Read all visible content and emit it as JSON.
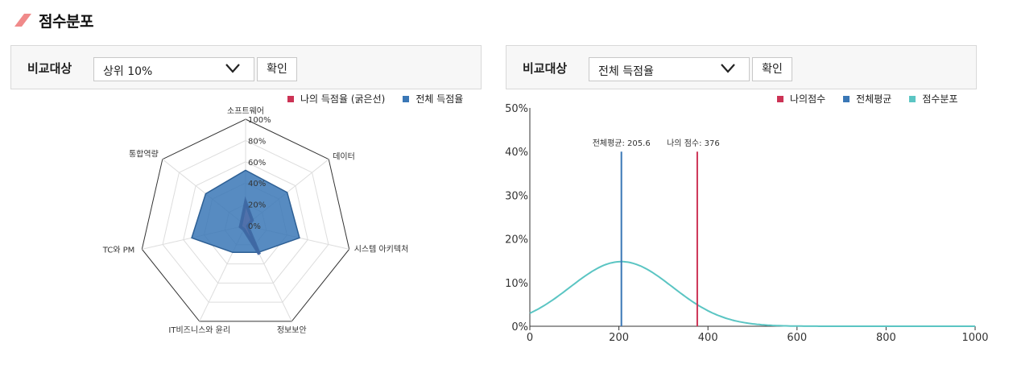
{
  "section": {
    "title": "점수분포"
  },
  "left_panel": {
    "compare_label": "비교대상",
    "select_value": "상위 10%",
    "confirm_label": "확인"
  },
  "right_panel": {
    "compare_label": "비교대상",
    "select_value": "전체 득점율",
    "confirm_label": "확인"
  },
  "colors": {
    "accent_red": "#cc3355",
    "blue": "#3a77b6",
    "teal": "#5bc5c3",
    "title_mark": "#f08a8a"
  },
  "chart_data": [
    {
      "type": "radar",
      "axes": [
        "소프트웨어",
        "데이터",
        "시스템 아키텍처",
        "정보보안",
        "IT비즈니스와 윤리",
        "TC와 PM",
        "통합역량"
      ],
      "radial_ticks": [
        "100%",
        "80%",
        "60%",
        "40%",
        "20%",
        "0%"
      ],
      "rmax": 100,
      "series": [
        {
          "name": "나의 득점율 (굵은선)",
          "color": "#cc3355",
          "values": [
            22,
            8,
            2,
            30,
            4,
            5,
            5
          ]
        },
        {
          "name": "전체 득점율",
          "color": "#3a77b6",
          "values": [
            52,
            50,
            52,
            28,
            28,
            52,
            48
          ]
        }
      ],
      "legend_position": "top-right"
    },
    {
      "type": "line",
      "x_range": [
        0,
        1000
      ],
      "y_range": [
        0,
        50
      ],
      "x_ticks": [
        "0",
        "200",
        "400",
        "600",
        "800",
        "1000"
      ],
      "y_ticks": [
        "0%",
        "10%",
        "20%",
        "30%",
        "40%",
        "50%"
      ],
      "distribution": {
        "name": "점수분포",
        "color": "#5bc5c3",
        "mean": 205.6,
        "sd": 115,
        "peak": 14.8
      },
      "mean_line": {
        "name": "전체평균",
        "label": "전체평균: 205.6",
        "x": 205.6,
        "color": "#3a77b6"
      },
      "my_line": {
        "name": "나의점수",
        "label": "나의 점수: 376",
        "x": 376,
        "color": "#cc3355"
      },
      "vline_height": 40,
      "legend": [
        "나의점수",
        "전체평균",
        "점수분포"
      ],
      "legend_position": "top-right"
    }
  ]
}
